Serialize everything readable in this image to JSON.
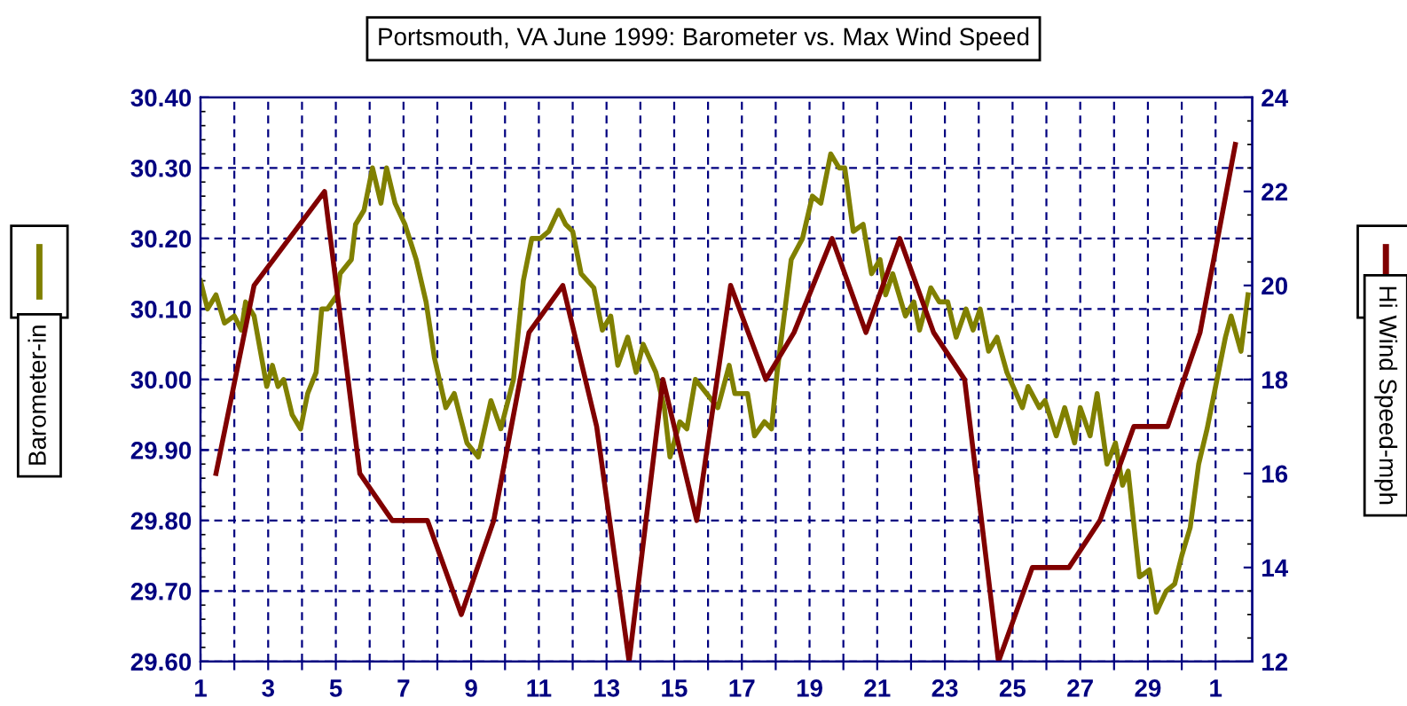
{
  "chart_data": {
    "type": "line",
    "title": "Portsmouth, VA June 1999: Barometer vs. Max Wind Speed",
    "ylabel": "Barometer-in",
    "y2label": "Hi Wind Speed-mph",
    "series": [
      {
        "color": "#808000",
        "x": [
          "1999-06-01T00:00",
          "1999-06-01T05:00",
          "1999-06-01T11:00",
          "1999-06-01T17:00",
          "1999-06-02T00:00",
          "1999-06-02T05:00",
          "1999-06-02T08:00",
          "1999-06-02T14:00",
          "1999-06-02T23:00",
          "1999-06-03T03:00",
          "1999-06-03T07:00",
          "1999-06-03T11:00",
          "1999-06-03T17:00",
          "1999-06-03T23:00",
          "1999-06-04T04:00",
          "1999-06-04T10:00",
          "1999-06-04T14:00",
          "1999-06-04T18:00",
          "1999-06-05T01:00",
          "1999-06-05T03:00",
          "1999-06-05T11:00",
          "1999-06-05T14:00",
          "1999-06-05T20:00",
          "1999-06-06T02:00",
          "1999-06-06T08:00",
          "1999-06-06T12:00",
          "1999-06-06T18:00",
          "1999-06-07T01:00",
          "1999-06-07T09:00",
          "1999-06-07T16:00",
          "1999-06-07T22:00",
          "1999-06-08T06:00",
          "1999-06-08T12:00",
          "1999-06-08T21:00",
          "1999-06-09T05:00",
          "1999-06-09T14:00",
          "1999-06-09T21:00",
          "1999-06-10T06:00",
          "1999-06-10T13:00",
          "1999-06-10T19:00",
          "1999-06-11T01:00",
          "1999-06-11T07:00",
          "1999-06-11T14:00",
          "1999-06-11T19:00",
          "1999-06-12T00:00",
          "1999-06-12T06:00",
          "1999-06-12T15:00",
          "1999-06-12T21:00",
          "1999-06-13T03:00",
          "1999-06-13T08:00",
          "1999-06-13T15:00",
          "1999-06-13T21:00",
          "1999-06-14T02:00",
          "1999-06-14T11:00",
          "1999-06-14T17:00",
          "1999-06-14T21:00",
          "1999-06-15T04:00",
          "1999-06-15T09:00",
          "1999-06-15T15:00",
          "1999-06-15T23:00",
          "1999-06-16T07:00",
          "1999-06-16T15:00",
          "1999-06-16T19:00",
          "1999-06-17T04:00",
          "1999-06-17T09:00",
          "1999-06-17T16:00",
          "1999-06-17T21:00",
          "1999-06-18T01:00",
          "1999-06-18T11:00",
          "1999-06-18T19:00",
          "1999-06-19T02:00",
          "1999-06-19T08:00",
          "1999-06-19T15:00",
          "1999-06-19T21:00",
          "1999-06-20T01:00",
          "1999-06-20T07:00",
          "1999-06-20T14:00",
          "1999-06-20T20:00",
          "1999-06-21T02:00",
          "1999-06-21T06:00",
          "1999-06-21T11:00",
          "1999-06-21T20:00",
          "1999-06-22T02:00",
          "1999-06-22T06:00",
          "1999-06-22T14:00",
          "1999-06-22T20:00",
          "1999-06-23T02:00",
          "1999-06-23T08:00",
          "1999-06-23T15:00",
          "1999-06-23T20:00",
          "1999-06-24T01:00",
          "1999-06-24T07:00",
          "1999-06-24T13:00",
          "1999-06-24T20:00",
          "1999-06-25T07:00",
          "1999-06-25T11:00",
          "1999-06-25T19:00",
          "1999-06-25T23:00",
          "1999-06-26T07:00",
          "1999-06-26T13:00",
          "1999-06-26T20:00",
          "1999-06-27T00:00",
          "1999-06-27T07:00",
          "1999-06-27T12:00",
          "1999-06-27T19:00",
          "1999-06-28T01:00",
          "1999-06-28T06:00",
          "1999-06-28T10:00",
          "1999-06-28T18:00",
          "1999-06-29T01:00",
          "1999-06-29T06:00",
          "1999-06-29T13:00",
          "1999-06-29T19:00",
          "1999-06-30T00:00",
          "1999-06-30T06:00",
          "1999-06-30T12:00",
          "1999-06-30T18:00",
          "1999-07-01T01:00",
          "1999-07-01T07:00",
          "1999-07-01T11:00",
          "1999-07-01T18:00",
          "1999-07-01T23:00"
        ],
        "values": [
          30.14,
          30.1,
          30.12,
          30.08,
          30.09,
          30.07,
          30.11,
          30.09,
          29.99,
          30.02,
          29.99,
          30.0,
          29.95,
          29.93,
          29.98,
          30.01,
          30.1,
          30.1,
          30.12,
          30.15,
          30.17,
          30.22,
          30.24,
          30.3,
          30.25,
          30.3,
          30.25,
          30.22,
          30.17,
          30.11,
          30.03,
          29.96,
          29.98,
          29.91,
          29.89,
          29.97,
          29.93,
          30.0,
          30.14,
          30.2,
          30.2,
          30.21,
          30.24,
          30.22,
          30.21,
          30.15,
          30.13,
          30.07,
          30.09,
          30.02,
          30.06,
          30.01,
          30.05,
          30.01,
          29.96,
          29.89,
          29.94,
          29.93,
          30.0,
          29.98,
          29.96,
          30.02,
          29.98,
          29.98,
          29.92,
          29.94,
          29.93,
          30.01,
          30.17,
          30.2,
          30.26,
          30.25,
          30.32,
          30.3,
          30.3,
          30.21,
          30.22,
          30.15,
          30.17,
          30.12,
          30.15,
          30.09,
          30.11,
          30.07,
          30.13,
          30.11,
          30.11,
          30.06,
          30.1,
          30.07,
          30.1,
          30.04,
          30.06,
          30.01,
          29.96,
          29.99,
          29.96,
          29.97,
          29.92,
          29.96,
          29.91,
          29.96,
          29.92,
          29.98,
          29.88,
          29.91,
          29.85,
          29.87,
          29.72,
          29.73,
          29.67,
          29.7,
          29.71,
          29.75,
          29.79,
          29.88,
          29.93,
          30.0,
          30.06,
          30.09,
          30.04,
          30.12
        ]
      },
      {
        "color": "#800000",
        "axis": "y2",
        "x": [
          "1999-06-01T11:00",
          "1999-06-02T14:00",
          "1999-06-04T16:00",
          "1999-06-05T17:00",
          "1999-06-06T16:00",
          "1999-06-07T17:00",
          "1999-06-08T17:00",
          "1999-06-09T16:00",
          "1999-06-10T17:00",
          "1999-06-11T17:00",
          "1999-06-12T17:00",
          "1999-06-13T16:00",
          "1999-06-14T16:00",
          "1999-06-15T16:00",
          "1999-06-16T16:00",
          "1999-06-17T17:00",
          "1999-06-18T13:00",
          "1999-06-19T16:00",
          "1999-06-20T16:00",
          "1999-06-21T16:00",
          "1999-06-22T16:00",
          "1999-06-23T14:00",
          "1999-06-24T14:00",
          "1999-06-25T14:00",
          "1999-06-26T16:00",
          "1999-06-27T14:00",
          "1999-06-28T14:00",
          "1999-06-29T14:00",
          "1999-06-30T13:00",
          "1999-07-01T14:00"
        ],
        "values": [
          16,
          20,
          22,
          16,
          15,
          15,
          13,
          15,
          19,
          20,
          17,
          12,
          18,
          15,
          20,
          18,
          19,
          21,
          19,
          21,
          19,
          18,
          12,
          14,
          14,
          15,
          17,
          17,
          19,
          23
        ]
      }
    ],
    "xlim": [
      "1999-06-01",
      "1999-07-02T02:00"
    ],
    "xticks": [
      {
        "value": "1999-06-01",
        "label": "1"
      },
      {
        "value": "1999-06-02",
        "label": null
      },
      {
        "value": "1999-06-03",
        "label": "3"
      },
      {
        "value": "1999-06-04",
        "label": null
      },
      {
        "value": "1999-06-05",
        "label": "5"
      },
      {
        "value": "1999-06-06",
        "label": null
      },
      {
        "value": "1999-06-07",
        "label": "7"
      },
      {
        "value": "1999-06-08",
        "label": null
      },
      {
        "value": "1999-06-09",
        "label": "9"
      },
      {
        "value": "1999-06-10",
        "label": null
      },
      {
        "value": "1999-06-11",
        "label": "11"
      },
      {
        "value": "1999-06-12",
        "label": null
      },
      {
        "value": "1999-06-13",
        "label": "13"
      },
      {
        "value": "1999-06-14",
        "label": null
      },
      {
        "value": "1999-06-15",
        "label": "15"
      },
      {
        "value": "1999-06-16",
        "label": null
      },
      {
        "value": "1999-06-17",
        "label": "17"
      },
      {
        "value": "1999-06-18",
        "label": null
      },
      {
        "value": "1999-06-19",
        "label": "19"
      },
      {
        "value": "1999-06-20",
        "label": null
      },
      {
        "value": "1999-06-21",
        "label": "21"
      },
      {
        "value": "1999-06-22",
        "label": null
      },
      {
        "value": "1999-06-23",
        "label": "23"
      },
      {
        "value": "1999-06-24",
        "label": null
      },
      {
        "value": "1999-06-25",
        "label": "25"
      },
      {
        "value": "1999-06-26",
        "label": null
      },
      {
        "value": "1999-06-27",
        "label": "27"
      },
      {
        "value": "1999-06-28",
        "label": null
      },
      {
        "value": "1999-06-29",
        "label": "29"
      },
      {
        "value": "1999-06-30",
        "label": null
      },
      {
        "value": "1999-07-01",
        "label": "1"
      }
    ],
    "ylim": [
      29.6,
      30.4
    ],
    "yticks": [
      {
        "value": 29.6,
        "label": "29.60"
      },
      {
        "value": 29.7,
        "label": "29.70"
      },
      {
        "value": 29.8,
        "label": "29.80"
      },
      {
        "value": 29.9,
        "label": "29.90"
      },
      {
        "value": 30.0,
        "label": "30.00"
      },
      {
        "value": 30.1,
        "label": "30.10"
      },
      {
        "value": 30.2,
        "label": "30.20"
      },
      {
        "value": 30.3,
        "label": "30.30"
      },
      {
        "value": 30.4,
        "label": "30.40"
      }
    ],
    "y2lim": [
      12,
      24
    ],
    "y2ticks": [
      12,
      14,
      16,
      18,
      20,
      22,
      24
    ],
    "grid": true,
    "line_style": "solid",
    "marker": "none"
  }
}
